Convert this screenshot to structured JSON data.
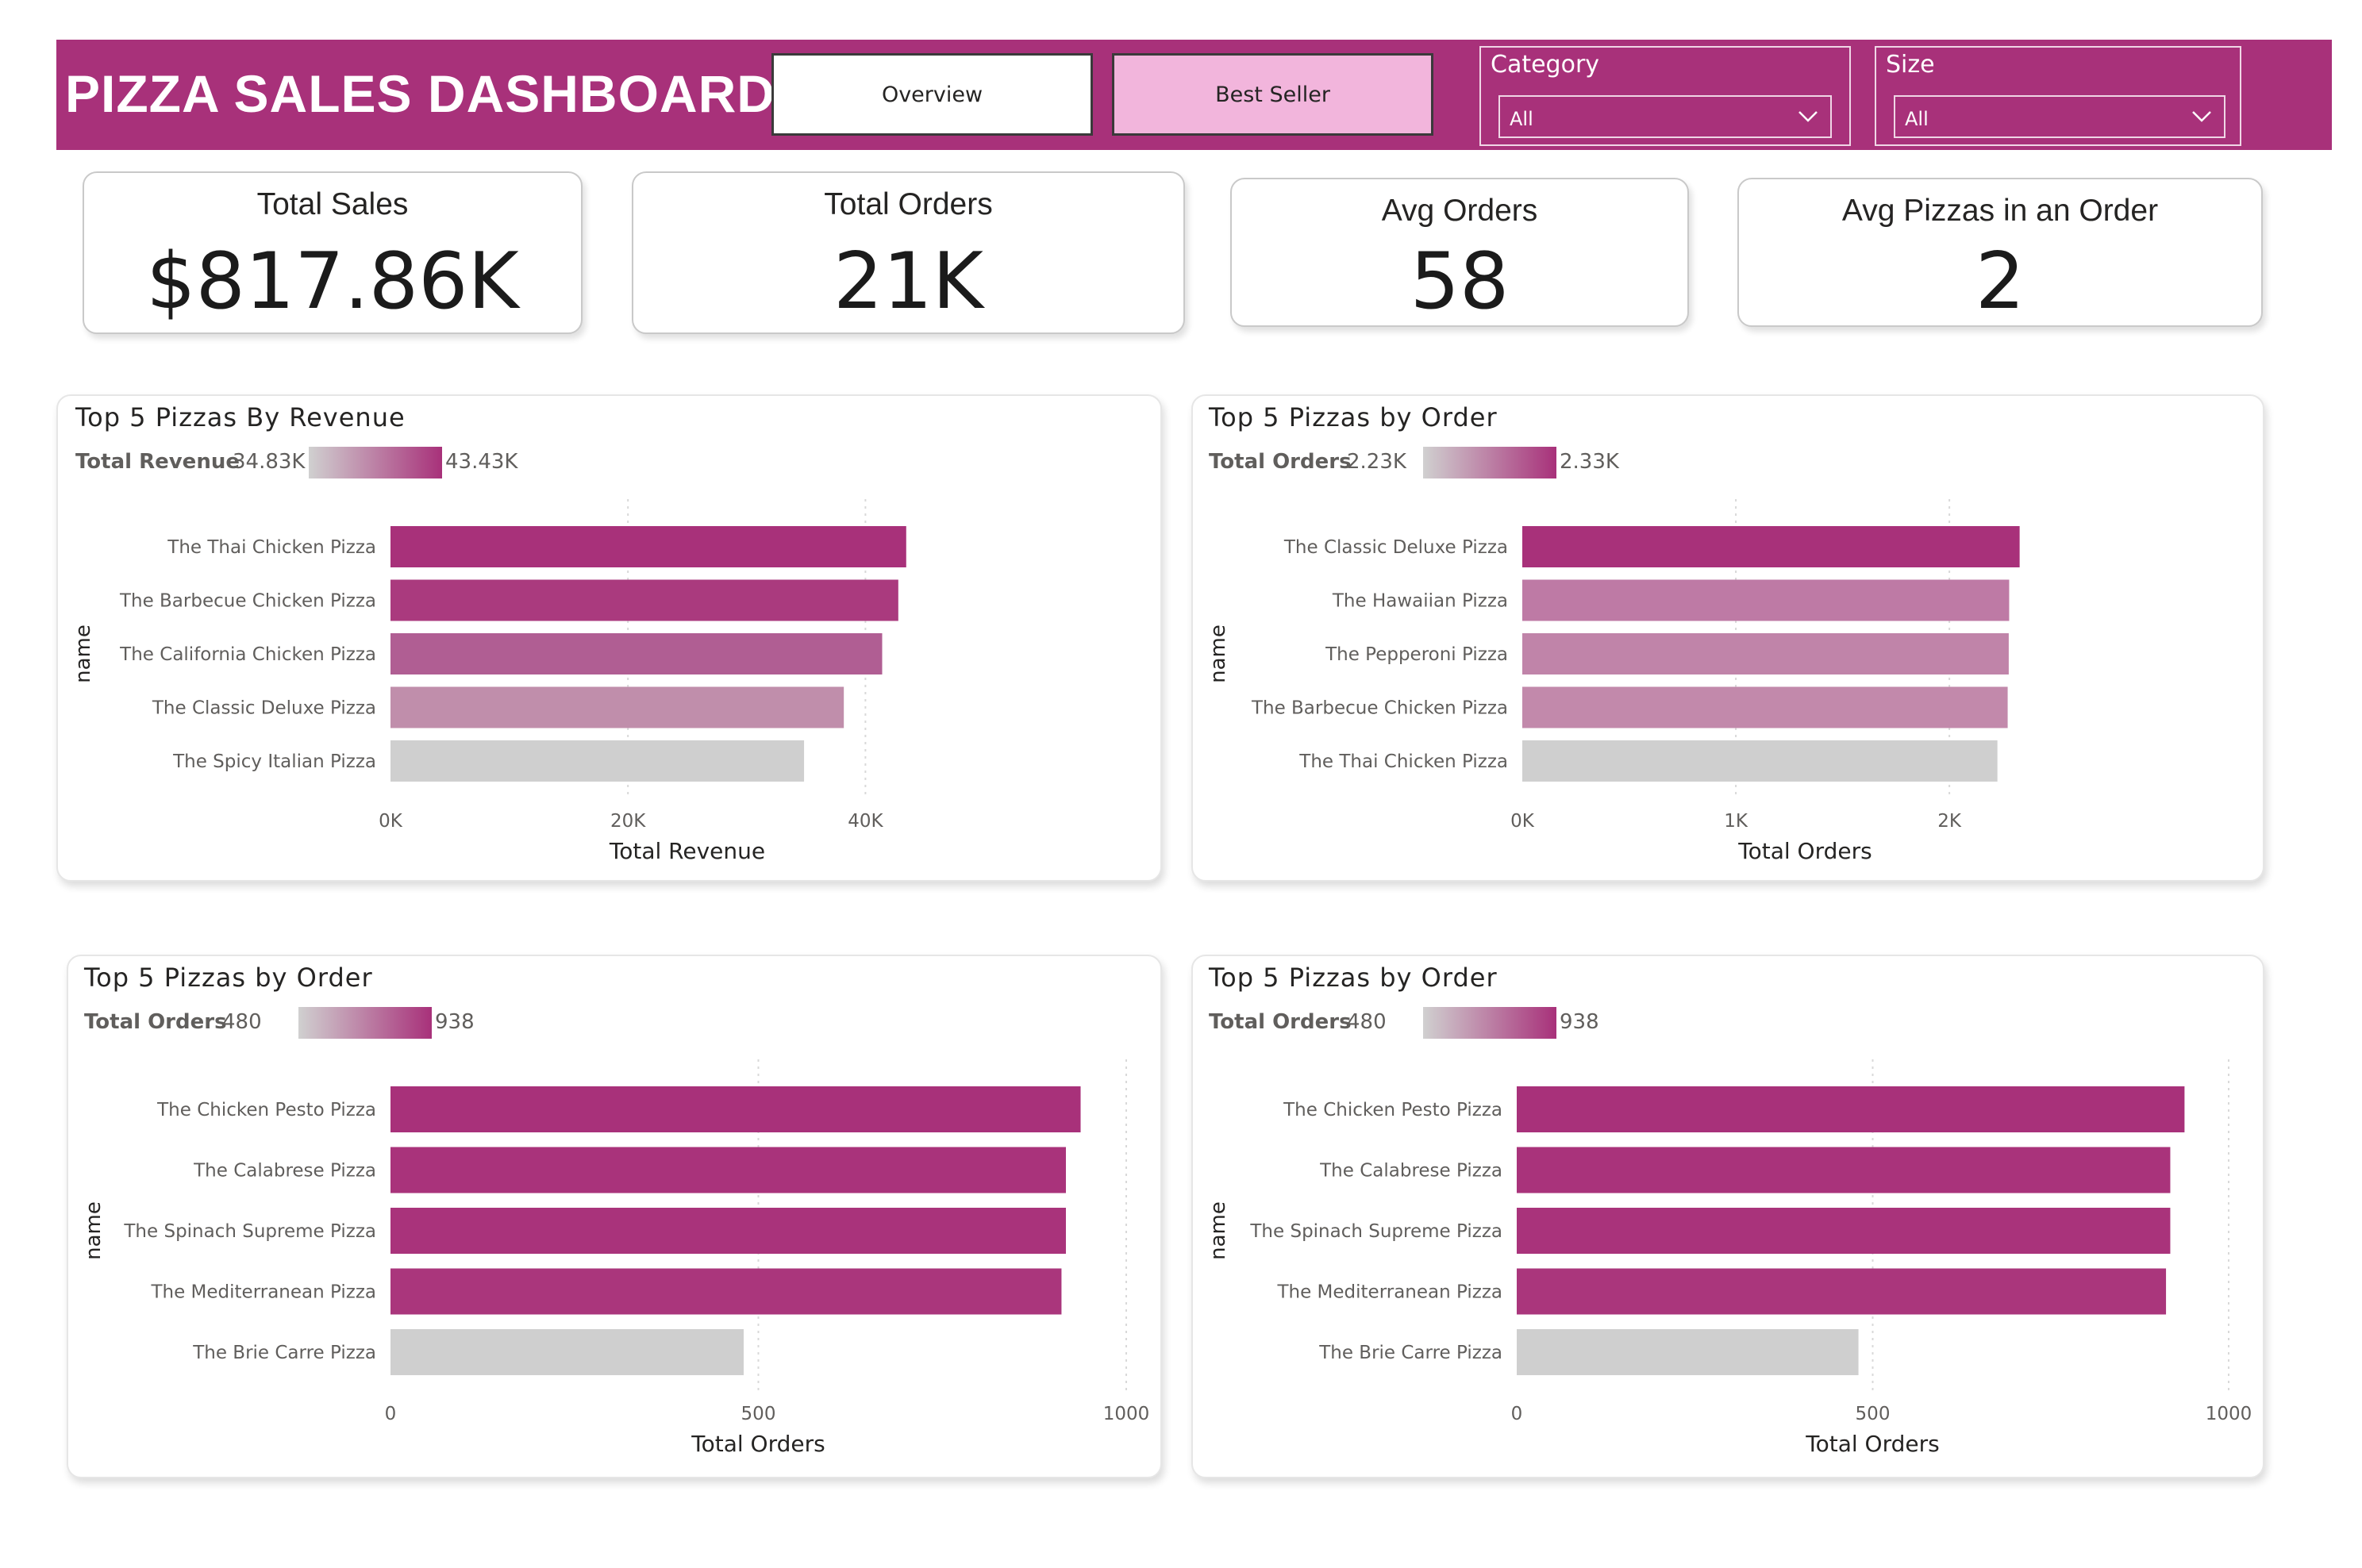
{
  "header": {
    "title": "PIZZA SALES DASHBOARD",
    "nav": {
      "overview_label": "Overview",
      "best_seller_label": "Best Seller"
    },
    "slicers": [
      {
        "label": "Category",
        "value": "All"
      },
      {
        "label": "Size",
        "value": "All"
      }
    ]
  },
  "kpis": [
    {
      "label": "Total Sales",
      "value": "$817.86K"
    },
    {
      "label": "Total Orders",
      "value": "21K"
    },
    {
      "label": "Avg Orders",
      "value": "58"
    },
    {
      "label": "Avg Pizzas in an Order",
      "value": "2"
    }
  ],
  "colors": {
    "header_bg": "#a8317a",
    "accent": "#a8317a",
    "active_button": "#f2b5dc",
    "low": "#d0d0d0"
  },
  "chart_data": [
    {
      "type": "bar",
      "title": "Top 5 Pizzas By Revenue",
      "legend": {
        "name": "Total Revenue",
        "min": "34.83K",
        "max": "43.43K"
      },
      "categories": [
        "The Thai Chicken Pizza",
        "The Barbecue Chicken Pizza",
        "The California Chicken Pizza",
        "The Classic Deluxe Pizza",
        "The Spicy Italian Pizza"
      ],
      "values": [
        43434,
        42768,
        41410,
        38180,
        34831
      ],
      "colors": [
        "#a8317a",
        "#aa3a7e",
        "#b05e93",
        "#c08eab",
        "#cfcfcf"
      ],
      "xlabel": "Total Revenue",
      "ylabel": "name",
      "xlim": [
        0,
        50000
      ],
      "ticks": [
        0,
        20000,
        40000
      ],
      "tick_labels": [
        "0K",
        "20K",
        "40K"
      ]
    },
    {
      "type": "bar",
      "title": "Top 5 Pizzas by Order",
      "legend": {
        "name": "Total Orders",
        "min": "2.23K",
        "max": "2.33K"
      },
      "categories": [
        "The Classic Deluxe Pizza",
        "The Hawaiian Pizza",
        "The Pepperoni Pizza",
        "The Barbecue Chicken Pizza",
        "The Thai Chicken Pizza"
      ],
      "values": [
        2329,
        2280,
        2278,
        2273,
        2225
      ],
      "colors": [
        "#a8317a",
        "#be7aa5",
        "#c084a9",
        "#c289ab",
        "#cfcfcf"
      ],
      "xlabel": "Total Orders",
      "ylabel": "name",
      "xlim": [
        0,
        2650
      ],
      "ticks": [
        0,
        1000,
        2000
      ],
      "tick_labels": [
        "0K",
        "1K",
        "2K"
      ]
    },
    {
      "type": "bar",
      "title": "Top 5 Pizzas by Order",
      "legend": {
        "name": "Total Orders",
        "min": "480",
        "max": "938"
      },
      "categories": [
        "The Chicken Pesto Pizza",
        "The Calabrese Pizza",
        "The Spinach Supreme Pizza",
        "The Mediterranean Pizza",
        "The Brie Carre Pizza"
      ],
      "values": [
        938,
        918,
        918,
        912,
        480
      ],
      "colors": [
        "#a8317a",
        "#a9337b",
        "#a9337b",
        "#aa367c",
        "#cfcfcf"
      ],
      "xlabel": "Total Orders",
      "ylabel": "name",
      "xlim": [
        0,
        1000
      ],
      "ticks": [
        0,
        500,
        1000
      ],
      "tick_labels": [
        "0",
        "500",
        "1000"
      ]
    },
    {
      "type": "bar",
      "title": "Top 5 Pizzas by Order",
      "legend": {
        "name": "Total Orders",
        "min": "480",
        "max": "938"
      },
      "categories": [
        "The Chicken Pesto Pizza",
        "The Calabrese Pizza",
        "The Spinach Supreme Pizza",
        "The Mediterranean Pizza",
        "The Brie Carre Pizza"
      ],
      "values": [
        938,
        918,
        918,
        912,
        480
      ],
      "colors": [
        "#a8317a",
        "#a9337b",
        "#a9337b",
        "#aa367c",
        "#cfcfcf"
      ],
      "xlabel": "Total Orders",
      "ylabel": "name",
      "xlim": [
        0,
        1000
      ],
      "ticks": [
        0,
        500,
        1000
      ],
      "tick_labels": [
        "0",
        "500",
        "1000"
      ]
    }
  ]
}
